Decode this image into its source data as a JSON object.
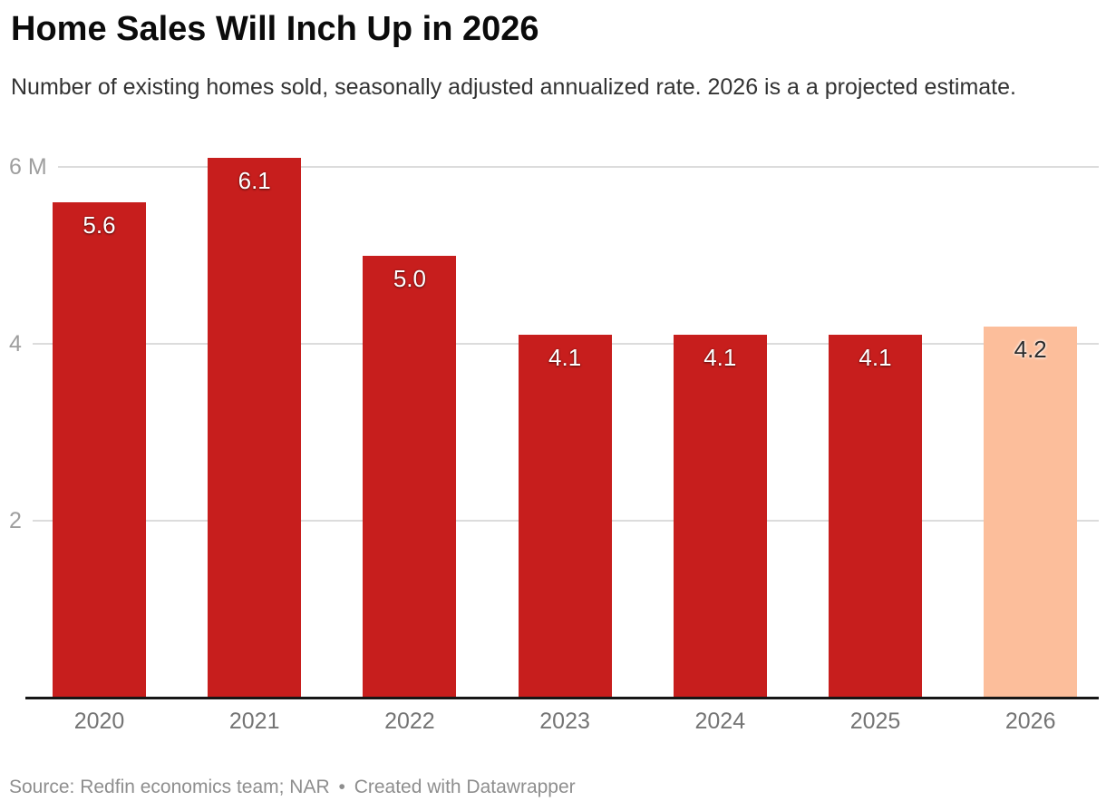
{
  "header": {
    "title": "Home Sales Will Inch Up in 2026",
    "subtitle": "Number of existing homes sold, seasonally adjusted annualized rate. 2026 is a a projected estimate."
  },
  "chart_data": {
    "type": "bar",
    "title": "Home Sales Will Inch Up in 2026",
    "subtitle": "Number of existing homes sold, seasonally adjusted annualized rate. 2026 is a a projected estimate.",
    "categories": [
      "2020",
      "2021",
      "2022",
      "2023",
      "2024",
      "2025",
      "2026"
    ],
    "values": [
      5.6,
      6.1,
      5.0,
      4.1,
      4.1,
      4.1,
      4.2
    ],
    "bar_labels": [
      "5.6",
      "6.1",
      "5.0",
      "4.1",
      "4.1",
      "4.1",
      "4.2"
    ],
    "unit": "M",
    "ylim": [
      0,
      6.25
    ],
    "yticks": [
      {
        "value": 2,
        "label": "2"
      },
      {
        "value": 4,
        "label": "4"
      },
      {
        "value": 6,
        "label": "6 M"
      }
    ],
    "grid": true,
    "legend": "none",
    "highlight_index": 6,
    "colors": {
      "bar": "#c71e1d",
      "highlight_bar": "#fcbe9b",
      "bar_label_on_red": "#ffffff",
      "bar_label_on_highlight": "#2d2d2d",
      "gridline": "#dcdcdc",
      "axis_line": "#161616",
      "y_tick_label": "#9e9e9e",
      "x_tick_label": "#747474"
    }
  },
  "footer": {
    "source": "Source: Redfin economics team; NAR",
    "separator": "•",
    "attribution": "Created with Datawrapper"
  }
}
